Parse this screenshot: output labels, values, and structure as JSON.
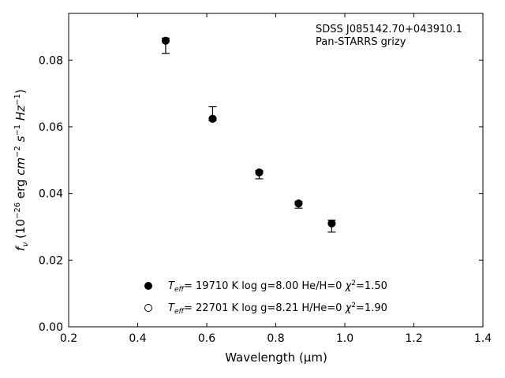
{
  "chart_data": {
    "type": "scatter",
    "xlabel": "Wavelength (μm)",
    "xlim": [
      0.2,
      1.4
    ],
    "ylim": [
      0.0,
      0.094
    ],
    "x_ticks": [
      0.2,
      0.4,
      0.6,
      0.8,
      1.0,
      1.2,
      1.4
    ],
    "y_ticks": [
      0.0,
      0.02,
      0.04,
      0.06,
      0.08
    ],
    "x_tick_labels": [
      "0.2",
      "0.4",
      "0.6",
      "0.8",
      "1.0",
      "1.2",
      "1.4"
    ],
    "y_tick_labels": [
      "0.00",
      "0.02",
      "0.04",
      "0.06",
      "0.08"
    ],
    "annotation": [
      "SDSS J085142.70+043910.1",
      "Pan-STARRS grizy"
    ],
    "observed": {
      "x": [
        0.481,
        0.617,
        0.752,
        0.866,
        0.962
      ],
      "y": [
        0.0853,
        0.0622,
        0.046,
        0.0368,
        0.0302
      ],
      "yerr_low": [
        0.0033,
        0.0004,
        0.0016,
        0.0012,
        0.0018
      ],
      "yerr_high": [
        0.0013,
        0.0038,
        0.0008,
        0.0008,
        0.0018
      ]
    },
    "series": [
      {
        "marker": "filled",
        "x": [
          0.481,
          0.617,
          0.752,
          0.866,
          0.962
        ],
        "y": [
          0.0858,
          0.0624,
          0.0463,
          0.037,
          0.031
        ]
      },
      {
        "marker": "open",
        "x": [
          0.481,
          0.617,
          0.752,
          0.866,
          0.962
        ],
        "y": [
          0.0858,
          0.0624,
          0.0463,
          0.037,
          0.031
        ]
      }
    ],
    "legend": [
      {
        "marker": "filled",
        "teff_value": "= 19710 K",
        "rest": "log g=8.00  He/H=0",
        "chi": "=1.50"
      },
      {
        "marker": "open",
        "teff_value": "= 22701 K",
        "rest": "log g=8.21  H/He=0",
        "chi": "=1.90"
      }
    ],
    "legend_position": "lower-center",
    "grid": false,
    "colors": {
      "marker": "#000000",
      "axes": "#000000",
      "background": "#ffffff"
    }
  }
}
